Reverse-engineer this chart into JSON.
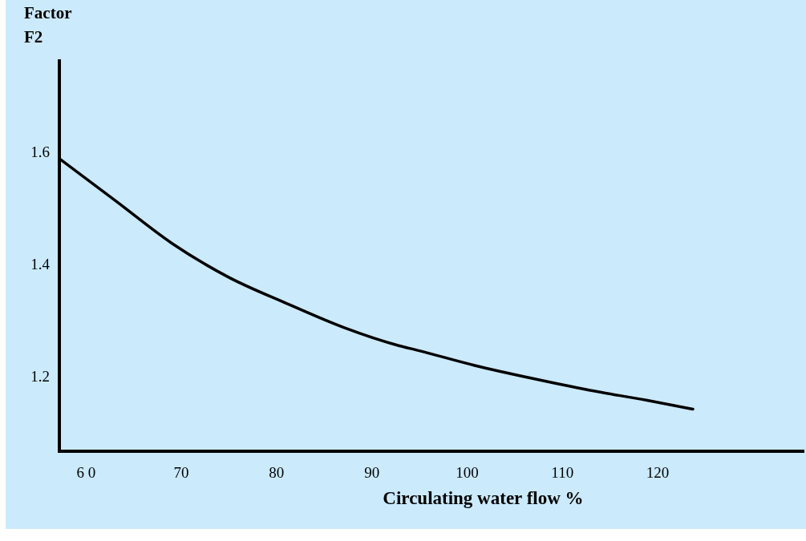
{
  "chart_data": {
    "type": "line",
    "xlabel": "Circulating water flow %",
    "ylabel": "Factor\nF2",
    "x": [
      57.2,
      63.0,
      69.0,
      75.0,
      81.0,
      87.0,
      92.9,
      94.8,
      100.8,
      106.8,
      112.8,
      118.8,
      123.7
    ],
    "series": [
      {
        "color": "#000000",
        "values": [
          1.588,
          1.514,
          1.437,
          1.376,
          1.33,
          1.287,
          1.254,
          1.246,
          1.219,
          1.196,
          1.175,
          1.157,
          1.141
        ]
      }
    ],
    "xlim": [
      57.2,
      135.4
    ],
    "ylim": [
      1.066,
      1.765
    ],
    "xticks": [
      {
        "value": 60,
        "label": "6 0"
      },
      70,
      80,
      90,
      100,
      110,
      120
    ],
    "yticks": [
      1.2,
      1.4,
      1.6
    ],
    "grid": false,
    "marker": "none",
    "line_style": "solid"
  }
}
